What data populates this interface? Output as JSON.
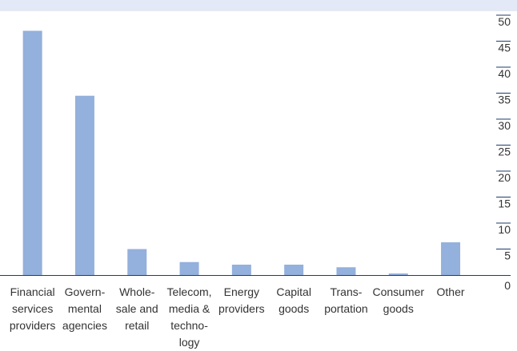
{
  "chart_data": {
    "type": "bar",
    "categories": [
      "Financial services providers",
      "Govern-mental agencies",
      "Whole-sale and retail",
      "Telecom, media & techno-logy",
      "Energy providers",
      "Capital goods",
      "Trans-portation",
      "Consumer goods",
      "Other"
    ],
    "category_lines": [
      [
        "Financial",
        "services",
        "providers"
      ],
      [
        "Govern-",
        "mental",
        "agencies"
      ],
      [
        "Whole-",
        "sale and",
        "retail"
      ],
      [
        "Telecom,",
        "media &",
        "techno-",
        "logy"
      ],
      [
        "Energy",
        "providers"
      ],
      [
        "Capital",
        "goods"
      ],
      [
        "Trans-",
        "portation"
      ],
      [
        "Consumer",
        "goods"
      ],
      [
        "Other"
      ]
    ],
    "values": [
      47,
      34.5,
      5,
      2.5,
      2,
      2,
      1.5,
      0.3,
      6.3
    ],
    "yticks": [
      0,
      5,
      10,
      15,
      20,
      25,
      30,
      35,
      40,
      45,
      50
    ],
    "ylim": [
      0,
      50
    ],
    "ytick_position": "right",
    "bar_color": "#94b0dc",
    "header_band_color": "#e3e9f6",
    "axis_color": "#1f3a6e"
  }
}
